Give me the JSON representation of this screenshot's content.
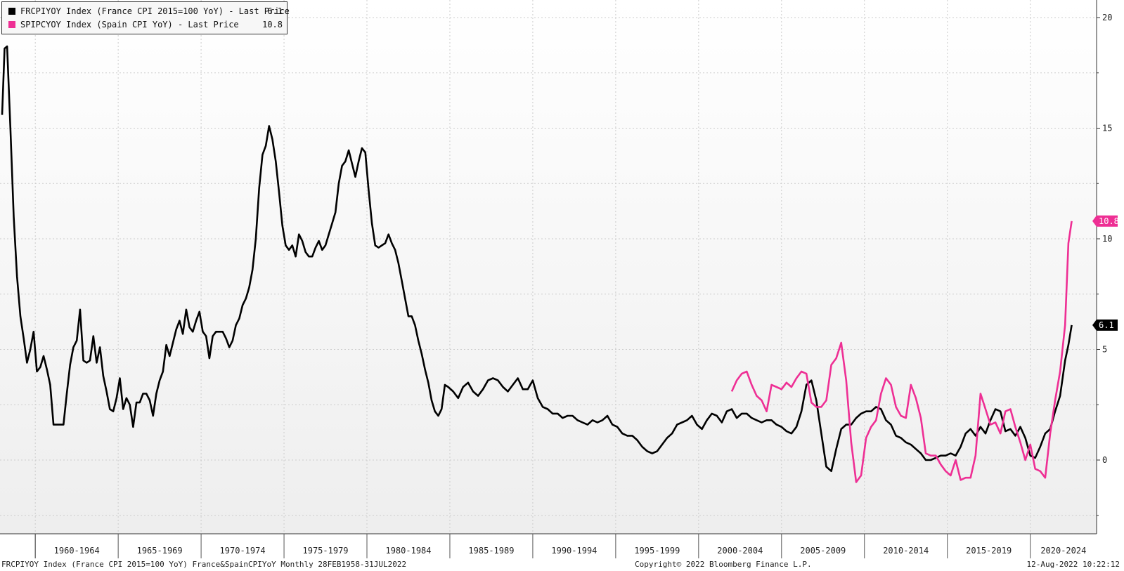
{
  "legend": {
    "france_label": "FRCPIYOY Index (France CPI 2015=100 YoY) - Last Price",
    "france_value": "6.1",
    "spain_label": "SPIPCYOY Index (Spain CPI YoY) - Last Price",
    "spain_value": "10.8"
  },
  "footer": {
    "left": "FRCPIYOY Index (France CPI 2015=100 YoY) France&SpainCPIYoY  Monthly 28FEB1958-31JUL2022",
    "center": "Copyright© 2022 Bloomberg Finance L.P.",
    "right": "12-Aug-2022 10:22:12"
  },
  "colors": {
    "france": "#000000",
    "spain": "#ee2f94",
    "grid": "#cccccc"
  },
  "chart_data": {
    "type": "line",
    "x_range": [
      1958.0,
      2022.6
    ],
    "ylim": [
      -3,
      20.5
    ],
    "y_ticks": [
      0,
      5,
      10,
      15,
      20
    ],
    "x_groups": [
      {
        "label": "1960-1964",
        "start": 1960,
        "end": 1965
      },
      {
        "label": "1965-1969",
        "start": 1965,
        "end": 1970
      },
      {
        "label": "1970-1974",
        "start": 1970,
        "end": 1975
      },
      {
        "label": "1975-1979",
        "start": 1975,
        "end": 1980
      },
      {
        "label": "1980-1984",
        "start": 1980,
        "end": 1985
      },
      {
        "label": "1985-1989",
        "start": 1985,
        "end": 1990
      },
      {
        "label": "1990-1994",
        "start": 1990,
        "end": 1995
      },
      {
        "label": "1995-1999",
        "start": 1995,
        "end": 2000
      },
      {
        "label": "2000-2004",
        "start": 2000,
        "end": 2005
      },
      {
        "label": "2005-2009",
        "start": 2005,
        "end": 2010
      },
      {
        "label": "2010-2014",
        "start": 2010,
        "end": 2015
      },
      {
        "label": "2015-2019",
        "start": 2015,
        "end": 2020
      },
      {
        "label": "2020-2024",
        "start": 2020,
        "end": 2025
      }
    ],
    "grid": true,
    "legend_position": "top-left",
    "series": [
      {
        "name": "FRCPIYOY Index (France CPI 2015=100 YoY)",
        "color": "#000000",
        "last": "6.1",
        "x": [
          1958.0,
          1958.15,
          1958.3,
          1958.5,
          1958.7,
          1958.9,
          1959.1,
          1959.3,
          1959.5,
          1959.7,
          1959.9,
          1960.1,
          1960.3,
          1960.5,
          1960.7,
          1960.9,
          1961.1,
          1961.3,
          1961.5,
          1961.7,
          1961.9,
          1962.1,
          1962.3,
          1962.5,
          1962.7,
          1962.9,
          1963.1,
          1963.3,
          1963.5,
          1963.7,
          1963.9,
          1964.1,
          1964.3,
          1964.5,
          1964.7,
          1964.9,
          1965.1,
          1965.3,
          1965.5,
          1965.7,
          1965.9,
          1966.1,
          1966.3,
          1966.5,
          1966.7,
          1966.9,
          1967.1,
          1967.3,
          1967.5,
          1967.7,
          1967.9,
          1968.1,
          1968.3,
          1968.5,
          1968.7,
          1968.9,
          1969.1,
          1969.3,
          1969.5,
          1969.7,
          1969.9,
          1970.1,
          1970.3,
          1970.5,
          1970.7,
          1970.9,
          1971.1,
          1971.3,
          1971.5,
          1971.7,
          1971.9,
          1972.1,
          1972.3,
          1972.5,
          1972.7,
          1972.9,
          1973.1,
          1973.3,
          1973.5,
          1973.7,
          1973.9,
          1974.1,
          1974.3,
          1974.5,
          1974.7,
          1974.9,
          1975.1,
          1975.3,
          1975.5,
          1975.7,
          1975.9,
          1976.1,
          1976.3,
          1976.5,
          1976.7,
          1976.9,
          1977.1,
          1977.3,
          1977.5,
          1977.7,
          1977.9,
          1978.1,
          1978.3,
          1978.5,
          1978.7,
          1978.9,
          1979.1,
          1979.3,
          1979.5,
          1979.7,
          1979.9,
          1980.1,
          1980.3,
          1980.5,
          1980.7,
          1980.9,
          1981.1,
          1981.3,
          1981.5,
          1981.7,
          1981.9,
          1982.1,
          1982.3,
          1982.5,
          1982.7,
          1982.9,
          1983.1,
          1983.3,
          1983.5,
          1983.7,
          1983.9,
          1984.1,
          1984.3,
          1984.5,
          1984.7,
          1984.9,
          1985.2,
          1985.5,
          1985.8,
          1986.1,
          1986.4,
          1986.7,
          1987.0,
          1987.3,
          1987.6,
          1987.9,
          1988.2,
          1988.5,
          1988.8,
          1989.1,
          1989.4,
          1989.7,
          1990.0,
          1990.3,
          1990.6,
          1990.9,
          1991.2,
          1991.5,
          1991.8,
          1992.1,
          1992.4,
          1992.7,
          1993.0,
          1993.3,
          1993.6,
          1993.9,
          1994.2,
          1994.5,
          1994.8,
          1995.1,
          1995.4,
          1995.7,
          1996.0,
          1996.3,
          1996.6,
          1996.9,
          1997.2,
          1997.5,
          1997.8,
          1998.1,
          1998.4,
          1998.7,
          1999.0,
          1999.3,
          1999.6,
          1999.9,
          2000.2,
          2000.5,
          2000.8,
          2001.1,
          2001.4,
          2001.7,
          2002.0,
          2002.3,
          2002.6,
          2002.9,
          2003.2,
          2003.5,
          2003.8,
          2004.1,
          2004.4,
          2004.7,
          2005.0,
          2005.3,
          2005.6,
          2005.9,
          2006.2,
          2006.5,
          2006.8,
          2007.1,
          2007.4,
          2007.7,
          2008.0,
          2008.3,
          2008.6,
          2008.9,
          2009.2,
          2009.5,
          2009.8,
          2010.1,
          2010.4,
          2010.7,
          2011.0,
          2011.3,
          2011.6,
          2011.9,
          2012.2,
          2012.5,
          2012.8,
          2013.1,
          2013.4,
          2013.7,
          2014.0,
          2014.3,
          2014.6,
          2014.9,
          2015.2,
          2015.5,
          2015.8,
          2016.1,
          2016.4,
          2016.7,
          2017.0,
          2017.3,
          2017.6,
          2017.9,
          2018.2,
          2018.5,
          2018.8,
          2019.1,
          2019.4,
          2019.7,
          2020.0,
          2020.3,
          2020.6,
          2020.9,
          2021.2,
          2021.5,
          2021.8,
          2022.1,
          2022.3,
          2022.5
        ],
        "y": [
          15.6,
          18.6,
          18.7,
          15,
          11,
          8.3,
          6.5,
          5.5,
          4.4,
          5,
          5.8,
          4,
          4.2,
          4.7,
          4.1,
          3.4,
          1.6,
          1.6,
          1.6,
          1.6,
          3,
          4.3,
          5.1,
          5.4,
          6.8,
          4.5,
          4.4,
          4.5,
          5.6,
          4.4,
          5.1,
          3.8,
          3.1,
          2.3,
          2.2,
          2.8,
          3.7,
          2.3,
          2.8,
          2.5,
          1.5,
          2.6,
          2.6,
          3,
          3,
          2.7,
          2,
          3,
          3.6,
          4,
          5.2,
          4.7,
          5.3,
          5.9,
          6.3,
          5.7,
          6.8,
          6,
          5.8,
          6.3,
          6.7,
          5.8,
          5.6,
          4.6,
          5.6,
          5.8,
          5.8,
          5.8,
          5.5,
          5.1,
          5.4,
          6.1,
          6.4,
          7,
          7.3,
          7.8,
          8.6,
          10,
          12.3,
          13.8,
          14.2,
          15.1,
          14.5,
          13.5,
          12.1,
          10.6,
          9.7,
          9.5,
          9.7,
          9.2,
          10.2,
          9.9,
          9.4,
          9.2,
          9.2,
          9.6,
          9.9,
          9.5,
          9.7,
          10.2,
          10.7,
          11.2,
          12.5,
          13.3,
          13.5,
          14,
          13.4,
          12.8,
          13.5,
          14.1,
          13.9,
          12.2,
          10.7,
          9.7,
          9.6,
          9.7,
          9.8,
          10.2,
          9.8,
          9.5,
          8.9,
          8.1,
          7.3,
          6.5,
          6.5,
          6.1,
          5.4,
          4.8,
          4.1,
          3.5,
          2.7,
          2.2,
          2,
          2.3,
          3.4,
          3.3,
          3.1,
          2.8,
          3.3,
          3.5,
          3.1,
          2.9,
          3.2,
          3.6,
          3.7,
          3.6,
          3.3,
          3.1,
          3.4,
          3.7,
          3.2,
          3.2,
          3.6,
          2.8,
          2.4,
          2.3,
          2.1,
          2.1,
          1.9,
          2,
          2,
          1.8,
          1.7,
          1.6,
          1.8,
          1.7,
          1.8,
          2,
          1.6,
          1.5,
          1.2,
          1.1,
          1.1,
          0.9,
          0.6,
          0.4,
          0.3,
          0.4,
          0.7,
          1,
          1.2,
          1.6,
          1.7,
          1.8,
          2,
          1.6,
          1.4,
          1.8,
          2.1,
          2,
          1.7,
          2.2,
          2.3,
          1.9,
          2.1,
          2.1,
          1.9,
          1.8,
          1.7,
          1.8,
          1.8,
          1.6,
          1.5,
          1.3,
          1.2,
          1.5,
          2.2,
          3.4,
          3.6,
          2.7,
          1.2,
          -0.3,
          -0.5,
          0.5,
          1.4,
          1.6,
          1.6,
          1.9,
          2.1,
          2.2,
          2.2,
          2.4,
          2.3,
          1.8,
          1.6,
          1.1,
          1,
          0.8,
          0.7,
          0.5,
          0.3,
          0,
          0,
          0.1,
          0.2,
          0.2,
          0.3,
          0.2,
          0.6,
          1.2,
          1.4,
          1.1,
          1.5,
          1.2,
          1.8,
          2.3,
          2.2,
          1.3,
          1.4,
          1.1,
          1.5,
          1,
          0.2,
          0.1,
          0.6,
          1.2,
          1.4,
          2.2,
          2.9,
          4.5,
          5.2,
          6.1
        ]
      },
      {
        "name": "SPIPCYOY Index (Spain CPI YoY)",
        "color": "#ee2f94",
        "last": "10.8",
        "x": [
          2002.0,
          2002.3,
          2002.6,
          2002.9,
          2003.2,
          2003.5,
          2003.8,
          2004.1,
          2004.4,
          2004.7,
          2005.0,
          2005.3,
          2005.6,
          2005.9,
          2006.2,
          2006.5,
          2006.8,
          2007.1,
          2007.4,
          2007.7,
          2008.0,
          2008.3,
          2008.6,
          2008.9,
          2009.2,
          2009.5,
          2009.8,
          2010.1,
          2010.4,
          2010.7,
          2011.0,
          2011.3,
          2011.6,
          2011.9,
          2012.2,
          2012.5,
          2012.8,
          2013.1,
          2013.4,
          2013.7,
          2014.0,
          2014.3,
          2014.6,
          2014.9,
          2015.2,
          2015.5,
          2015.8,
          2016.1,
          2016.4,
          2016.7,
          2017.0,
          2017.3,
          2017.6,
          2017.9,
          2018.2,
          2018.5,
          2018.8,
          2019.1,
          2019.4,
          2019.7,
          2020.0,
          2020.3,
          2020.6,
          2020.9,
          2021.2,
          2021.5,
          2021.8,
          2022.1,
          2022.3,
          2022.5
        ],
        "y": [
          3.1,
          3.6,
          3.9,
          4,
          3.4,
          2.9,
          2.7,
          2.2,
          3.4,
          3.3,
          3.2,
          3.5,
          3.3,
          3.7,
          4,
          3.9,
          2.6,
          2.4,
          2.4,
          2.7,
          4.3,
          4.6,
          5.3,
          3.6,
          0.8,
          -1,
          -0.7,
          1,
          1.5,
          1.8,
          3,
          3.7,
          3.4,
          2.4,
          2,
          1.9,
          3.4,
          2.8,
          1.9,
          0.3,
          0.2,
          0.2,
          -0.2,
          -0.5,
          -0.7,
          0,
          -0.9,
          -0.8,
          -0.8,
          0.2,
          3,
          2.3,
          1.6,
          1.7,
          1.2,
          2.2,
          2.3,
          1.5,
          0.8,
          0,
          0.7,
          -0.4,
          -0.5,
          -0.8,
          1.2,
          2.7,
          4,
          6.1,
          9.8,
          10.8
        ]
      }
    ]
  }
}
